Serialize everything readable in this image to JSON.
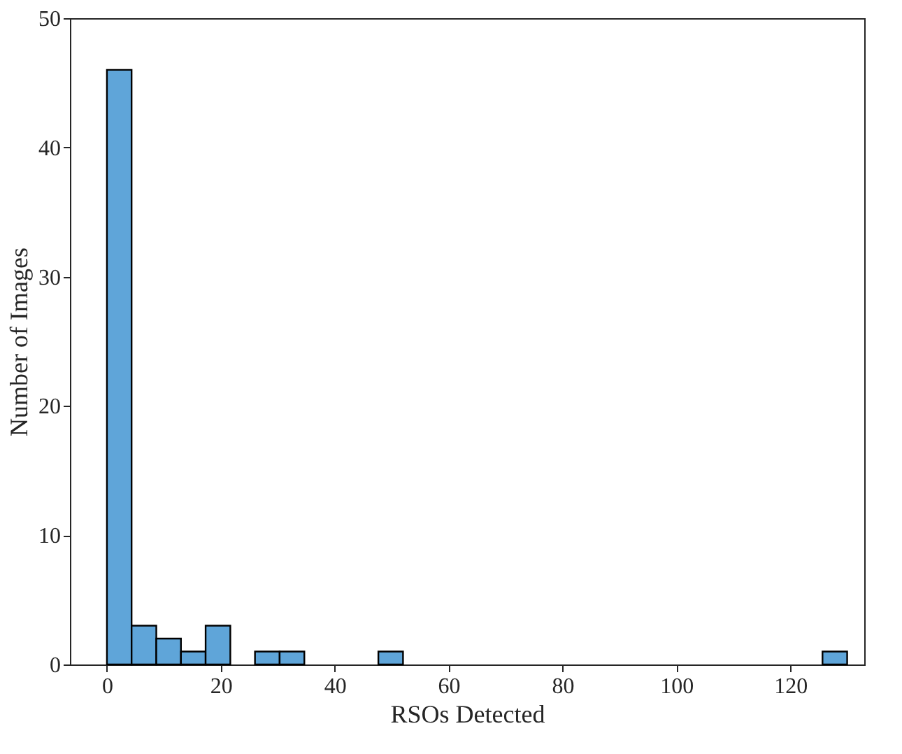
{
  "chart_data": {
    "type": "histogram",
    "xlabel": "RSOs Detected",
    "ylabel": "Number of Images",
    "bins": [
      0,
      4.33,
      8.67,
      13,
      17.33,
      21.67,
      26,
      30.33,
      34.67,
      39,
      43.33,
      47.67,
      52,
      56.33,
      60.67,
      65,
      69.33,
      73.67,
      78,
      82.33,
      86.67,
      91,
      95.33,
      99.67,
      104,
      108.33,
      112.67,
      117,
      121.33,
      125.67,
      130
    ],
    "values": [
      46,
      3,
      2,
      1,
      3,
      0,
      1,
      1,
      0,
      0,
      0,
      1,
      0,
      0,
      0,
      0,
      0,
      0,
      0,
      0,
      0,
      0,
      0,
      0,
      0,
      0,
      0,
      0,
      0,
      1
    ],
    "color": "#5fa5d9",
    "xlim": [
      -6.5,
      133
    ],
    "xticks": [
      0,
      20,
      40,
      60,
      80,
      100,
      120
    ],
    "ylim": [
      0,
      50
    ],
    "yticks": [
      0,
      10,
      20,
      30,
      40,
      50
    ],
    "grid": false
  }
}
